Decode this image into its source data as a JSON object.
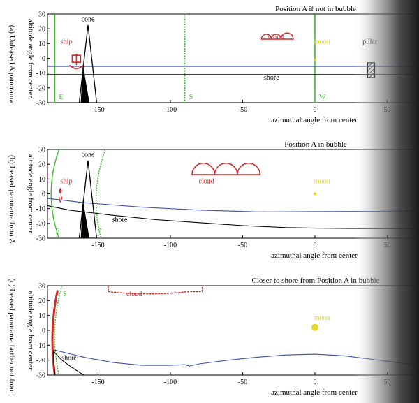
{
  "chart_data": [
    {
      "type": "line",
      "panel_label": "(a)",
      "side_label": "(a) Unleased A panorama",
      "ylabel": "altitude angle from center",
      "xlabel": "azimuthal angle from center",
      "title": "Position A if not in bubble",
      "xlim": [
        -185,
        72
      ],
      "ylim": [
        -30,
        30
      ],
      "x_ticks": [
        -150,
        -100,
        -50,
        0,
        50
      ],
      "y_ticks": [
        -30,
        -20,
        -10,
        0,
        10,
        20,
        30
      ],
      "series": [
        {
          "name": "shore",
          "color": "#000000",
          "x": [
            -185,
            72
          ],
          "y": [
            -11,
            -11
          ]
        },
        {
          "color": "#3b4fa8",
          "x": [
            -185,
            72
          ],
          "y": [
            -5.5,
            -5.5
          ]
        }
      ],
      "vlines": [
        {
          "x": -180,
          "label": "E",
          "color": "#3cbd2b",
          "style": "solid"
        },
        {
          "x": -90,
          "label": "S",
          "color": "#3cbd2b",
          "style": "dotted"
        },
        {
          "x": 0,
          "label": "W",
          "color": "#3cbd2b",
          "style": "solid"
        }
      ],
      "annotations": [
        {
          "text": "cone",
          "x": -157,
          "y": 25,
          "color": "#000000"
        },
        {
          "text": "ship",
          "x": -172,
          "y": 10,
          "color": "#d22a2a"
        },
        {
          "text": "cloud",
          "x": -27,
          "y": 13,
          "color": "#d22a2a"
        },
        {
          "text": "moon",
          "x": 5,
          "y": 10,
          "color": "#e8d62a"
        },
        {
          "text": "pillar",
          "x": 38,
          "y": 10,
          "color": "#000000"
        },
        {
          "text": "shore",
          "x": -30,
          "y": -14.5,
          "color": "#000000"
        }
      ]
    },
    {
      "type": "line",
      "panel_label": "(b)",
      "side_label": "(b) Leased panorama from A",
      "ylabel": "altitude angle from center",
      "xlabel": "azimuthal angle from center",
      "title": "Position A in bubble",
      "xlim": [
        -185,
        72
      ],
      "ylim": [
        -30,
        30
      ],
      "x_ticks": [
        -150,
        -100,
        -50,
        0,
        50
      ],
      "y_ticks": [
        -30,
        -20,
        -10,
        0,
        10,
        20,
        30
      ],
      "series": [
        {
          "color": "#3b4fa8",
          "x": [
            -185,
            -160,
            -120,
            -80,
            -40,
            0,
            40,
            72
          ],
          "y": [
            -3,
            -6,
            -9,
            -11,
            -12.2,
            -12,
            -11.8,
            -11.5
          ]
        },
        {
          "name": "shore",
          "color": "#000000",
          "x": [
            -185,
            -170,
            -140,
            -110,
            -80,
            -50,
            -20,
            0,
            40,
            72
          ],
          "y": [
            -8,
            -11,
            -14.5,
            -17.5,
            -19.5,
            -21.5,
            -22.8,
            -23.2,
            -23.5,
            -23.5
          ]
        }
      ],
      "annotations": [
        {
          "text": "cone",
          "x": -157,
          "y": 25,
          "color": "#000000"
        },
        {
          "text": "ship",
          "x": -172,
          "y": 7,
          "color": "#d22a2a"
        },
        {
          "text": "cloud",
          "x": -75,
          "y": 7,
          "color": "#d22a2a"
        },
        {
          "text": "moon",
          "x": 5,
          "y": 7,
          "color": "#e8d62a"
        },
        {
          "text": "shore",
          "x": -135,
          "y": -19,
          "color": "#000000"
        },
        {
          "text": "E",
          "x": -178,
          "y": -27,
          "color": "#3cbd2b"
        },
        {
          "text": "S",
          "x": -149,
          "y": -25,
          "color": "#3cbd2b"
        }
      ]
    },
    {
      "type": "line",
      "panel_label": "(c)",
      "side_label": "(c) Leased panorama farther out from",
      "ylabel": "altitude angle from center",
      "xlabel": "azimuthal angle from center",
      "title": "Closer to shore from Position A in bubble",
      "xlim": [
        -185,
        72
      ],
      "ylim": [
        -30,
        30
      ],
      "x_ticks": [
        -150,
        -100,
        -50,
        0,
        50
      ],
      "y_ticks": [
        -30,
        -20,
        -10,
        0,
        10,
        20,
        30
      ],
      "series": [
        {
          "color": "#3b4fa8",
          "x": [
            -181,
            -160,
            -140,
            -120,
            -100,
            -90,
            -87,
            -80,
            -60,
            -40,
            -20,
            0,
            20,
            40,
            72
          ],
          "y": [
            -13,
            -18,
            -21.5,
            -23.5,
            -23.5,
            -23,
            -24,
            -22.5,
            -20,
            -18,
            -16.5,
            -16,
            -17,
            -19.5,
            -23.5
          ]
        },
        {
          "name": "shore",
          "color": "#000000",
          "x": [
            -181,
            -175,
            -168,
            -160
          ],
          "y": [
            -14,
            -20,
            -25,
            -30
          ]
        }
      ],
      "annotations": [
        {
          "text": "S",
          "x": -173,
          "y": 23,
          "color": "#3cbd2b"
        },
        {
          "text": "cloud",
          "x": -125,
          "y": 23,
          "color": "#d22a2a"
        },
        {
          "text": "moon",
          "x": 5,
          "y": 7,
          "color": "#e8d62a"
        },
        {
          "text": "shore",
          "x": -170,
          "y": -20,
          "color": "#000000"
        }
      ]
    }
  ]
}
